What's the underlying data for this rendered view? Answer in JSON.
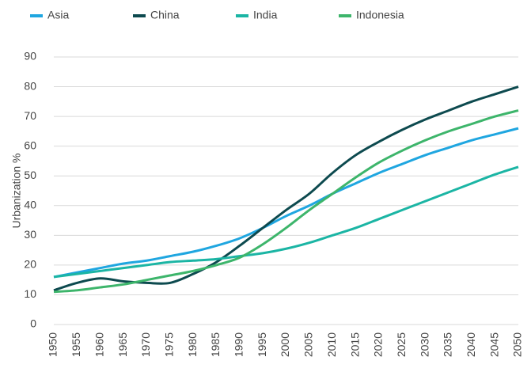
{
  "chart_data": {
    "type": "line",
    "y_label": "Urbanization %",
    "categories": [
      "1950",
      "1955",
      "1960",
      "1965",
      "1970",
      "1975",
      "1980",
      "1985",
      "1990",
      "1995",
      "2000",
      "2005",
      "2010",
      "2015",
      "2020",
      "2025",
      "2030",
      "2035",
      "2040",
      "2045",
      "2050"
    ],
    "series": [
      {
        "name": "Asia",
        "color": "#1fa6e0",
        "values": [
          16,
          17.5,
          19,
          20.5,
          21.5,
          23,
          24.5,
          26.5,
          29,
          32.5,
          36.5,
          40,
          44,
          47.5,
          51,
          54,
          57,
          59.5,
          62,
          64,
          66
        ]
      },
      {
        "name": "China",
        "color": "#0d4a4f",
        "values": [
          11.5,
          14,
          15.5,
          14.5,
          14,
          14,
          17,
          21,
          26.5,
          32.5,
          38.5,
          44,
          51,
          57,
          61.5,
          65.5,
          69,
          72,
          75,
          77.5,
          80
        ]
      },
      {
        "name": "India",
        "color": "#1bb5a4",
        "values": [
          16,
          17,
          18,
          19,
          20,
          21,
          21.5,
          22,
          23,
          24,
          25.5,
          27.5,
          30,
          32.5,
          35.5,
          38.5,
          41.5,
          44.5,
          47.5,
          50.5,
          53
        ]
      },
      {
        "name": "Indonesia",
        "color": "#3db56b",
        "values": [
          11,
          11.5,
          12.5,
          13.5,
          15,
          16.5,
          18,
          20,
          22.5,
          27,
          32.5,
          38.5,
          44,
          49.5,
          54.5,
          58.5,
          62,
          65,
          67.5,
          70,
          72
        ]
      }
    ],
    "ylim": [
      0,
      90
    ],
    "yticks": [
      0,
      10,
      20,
      30,
      40,
      50,
      60,
      70,
      80,
      90
    ],
    "grid": true,
    "legend": "top"
  }
}
